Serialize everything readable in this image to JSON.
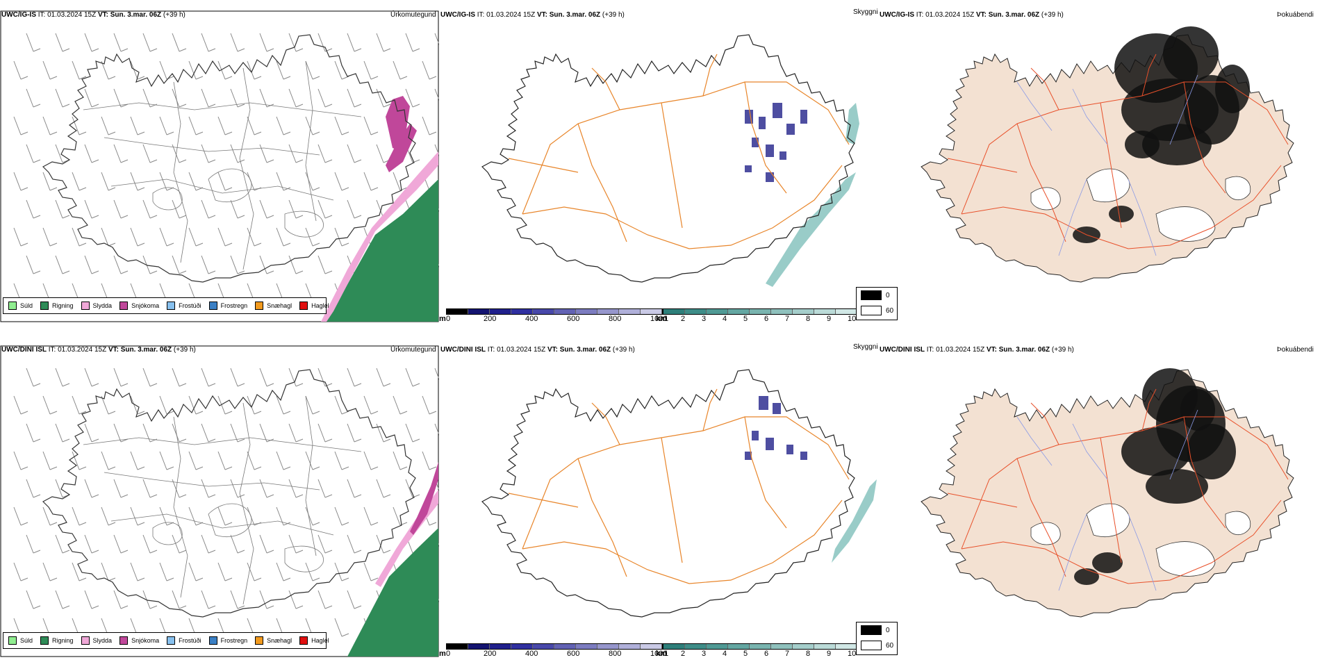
{
  "rows": [
    {
      "model": "UWC/IG-IS",
      "it_label": "IT:",
      "it_value": "01.03.2024 15Z",
      "vt_label": "VT:",
      "vt_value": "Sun. 3.mar. 06Z",
      "lead": "(+39 h)",
      "panels": [
        {
          "title": "Úrkomutegund"
        },
        {
          "title": "Skyggni"
        },
        {
          "title": "Þokuábendi"
        }
      ]
    },
    {
      "model": "UWC/DINI ISL",
      "it_label": "IT:",
      "it_value": "01.03.2024 15Z",
      "vt_label": "VT:",
      "vt_value": "Sun. 3.mar. 06Z",
      "lead": "(+39 h)",
      "panels": [
        {
          "title": "Úrkomutegund"
        },
        {
          "title": "Skyggni"
        },
        {
          "title": "Þokuábendi"
        }
      ]
    }
  ],
  "precip_legend": [
    {
      "label": "Súld",
      "color": "#90ee90"
    },
    {
      "label": "Rigning",
      "color": "#2e8b57"
    },
    {
      "label": "Slydda",
      "color": "#f0a8d8"
    },
    {
      "label": "Snjókoma",
      "color": "#c0479a"
    },
    {
      "label": "Frostúði",
      "color": "#87c0ee"
    },
    {
      "label": "Frostregn",
      "color": "#3a7fc4"
    },
    {
      "label": "Snæhagl",
      "color": "#f29a1e"
    },
    {
      "label": "Haglél",
      "color": "#e01010"
    }
  ],
  "ceiling_scale": {
    "unit": "m",
    "ticks": [
      "0",
      "200",
      "400",
      "600",
      "800",
      "1000"
    ],
    "colors": [
      "#000000",
      "#141470",
      "#20208c",
      "#3030a0",
      "#4848aa",
      "#6262b4",
      "#7c7cc0",
      "#9696cc",
      "#b0b0da",
      "#cacae6"
    ]
  },
  "visibility_scale": {
    "unit": "km",
    "ticks": [
      "1",
      "2",
      "3",
      "4",
      "5",
      "6",
      "7",
      "8",
      "9",
      "10"
    ],
    "colors": [
      "#2e7f7a",
      "#3e8d88",
      "#509a95",
      "#64a7a2",
      "#79b4af",
      "#8fc1bd",
      "#a5cecb",
      "#bbdbd8",
      "#d1e8e6",
      "#e7f4f3"
    ]
  },
  "cloud_legend": [
    "0",
    "60"
  ],
  "colors": {
    "coast": "#000000",
    "roads": "#e8852a",
    "rivers": "#8a9ae6",
    "land_fill": "#f3e1d2",
    "rain": "#2e8b57",
    "sleet": "#f0a8d8",
    "snow": "#c0479a",
    "low_ceiling": "#22228a",
    "visibility": "#7fbfba"
  }
}
